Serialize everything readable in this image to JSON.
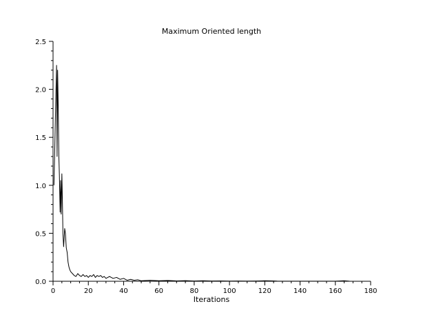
{
  "chart_data": {
    "type": "line",
    "title": "Maximum Oriented length",
    "xlabel": "Iterations",
    "ylabel": "",
    "xlim": [
      0,
      180
    ],
    "ylim": [
      0,
      2.5
    ],
    "x_ticks": [
      "0",
      "20",
      "40",
      "60",
      "80",
      "100",
      "120",
      "140",
      "160",
      "180"
    ],
    "y_ticks": [
      "0.0",
      "0.5",
      "1.0",
      "1.5",
      "2.0",
      "2.5"
    ],
    "grid": false,
    "legend": "none",
    "line_color": "#000000",
    "series": [
      {
        "x": [
          0.5,
          1,
          1.5,
          2,
          2.3,
          2.6,
          3,
          3.3,
          3.6,
          4,
          4.3,
          4.6,
          5,
          5.3,
          5.6,
          6,
          6.3,
          6.6,
          7,
          7.5,
          8,
          8.5,
          9,
          9.5,
          10,
          11,
          12,
          13,
          14,
          15,
          16,
          17,
          18,
          19,
          20,
          21,
          22,
          23,
          24,
          25,
          26,
          27,
          28,
          29,
          30,
          32,
          34,
          36,
          38,
          40,
          42,
          44,
          46,
          48,
          50,
          55,
          60,
          65,
          70,
          75,
          80,
          85,
          90,
          95,
          100,
          105,
          110,
          115,
          120,
          125,
          127,
          130,
          140,
          150,
          160,
          165,
          168
        ],
        "y": [
          1.0,
          1.4,
          1.85,
          2.25,
          1.3,
          2.2,
          1.75,
          1.3,
          1.1,
          0.72,
          1.05,
          0.7,
          1.12,
          0.85,
          0.5,
          0.36,
          0.45,
          0.55,
          0.5,
          0.35,
          0.3,
          0.2,
          0.15,
          0.12,
          0.1,
          0.08,
          0.06,
          0.05,
          0.08,
          0.06,
          0.05,
          0.07,
          0.05,
          0.06,
          0.04,
          0.06,
          0.05,
          0.07,
          0.04,
          0.06,
          0.05,
          0.06,
          0.04,
          0.05,
          0.03,
          0.05,
          0.03,
          0.04,
          0.02,
          0.03,
          0.01,
          0.02,
          0.01,
          0.015,
          0.005,
          0.01,
          0.005,
          0.008,
          0.004,
          0.006,
          0.003,
          0.005,
          0.003,
          0.004,
          0.002,
          0.003,
          0.002,
          0.003,
          0.005,
          0.004,
          0.002,
          0.001,
          0.001,
          0.001,
          0.001,
          0.005,
          0.001
        ]
      }
    ]
  }
}
